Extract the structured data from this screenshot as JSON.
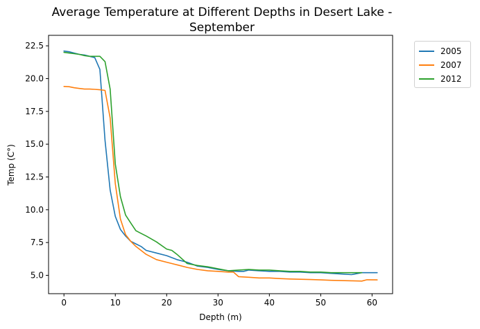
{
  "chart_data": {
    "type": "line",
    "title": "Average Temperature at Different Depths in Desert Lake - September",
    "title_lines": [
      "Average Temperature at Different Depths in Desert Lake -",
      "September"
    ],
    "xlabel": "Depth (m)",
    "ylabel": "Temp (C°)",
    "xlim": [
      -3,
      64
    ],
    "ylim": [
      3.6,
      23.3
    ],
    "xticks": [
      0,
      10,
      20,
      30,
      40,
      50,
      60
    ],
    "yticks": [
      5.0,
      7.5,
      10.0,
      12.5,
      15.0,
      17.5,
      20.0,
      22.5
    ],
    "ytick_labels": [
      "5.0",
      "7.5",
      "10.0",
      "12.5",
      "15.0",
      "17.5",
      "20.0",
      "22.5"
    ],
    "grid": false,
    "legend_position": "upper-right-outside",
    "series": [
      {
        "name": "2005",
        "color": "#1f77b4",
        "x": [
          0,
          1,
          2,
          3,
          4,
          5,
          6,
          7,
          8,
          9,
          10,
          11,
          12,
          13,
          14,
          15,
          16,
          18,
          20,
          22,
          24,
          26,
          28,
          30,
          32,
          34,
          35,
          36,
          38,
          40,
          42,
          44,
          46,
          48,
          50,
          52,
          54,
          56,
          58,
          60,
          61
        ],
        "y": [
          22.1,
          22.05,
          21.95,
          21.85,
          21.8,
          21.7,
          21.6,
          20.7,
          15.3,
          11.5,
          9.5,
          8.5,
          8.0,
          7.6,
          7.4,
          7.2,
          6.9,
          6.7,
          6.5,
          6.2,
          6.0,
          5.7,
          5.6,
          5.45,
          5.35,
          5.3,
          5.3,
          5.4,
          5.35,
          5.3,
          5.3,
          5.25,
          5.25,
          5.2,
          5.2,
          5.15,
          5.1,
          5.05,
          5.2,
          5.2,
          5.2
        ]
      },
      {
        "name": "2007",
        "color": "#ff7f0e",
        "x": [
          0,
          1,
          2,
          3,
          4,
          5,
          6,
          7,
          8,
          9,
          10,
          11,
          12,
          13,
          14,
          15,
          16,
          18,
          20,
          22,
          24,
          26,
          28,
          30,
          32,
          33,
          34,
          36,
          38,
          40,
          42,
          44,
          46,
          48,
          50,
          52,
          54,
          56,
          58,
          59,
          61
        ],
        "y": [
          19.4,
          19.38,
          19.3,
          19.25,
          19.2,
          19.2,
          19.18,
          19.15,
          19.1,
          17.0,
          12.0,
          9.3,
          8.1,
          7.6,
          7.2,
          6.9,
          6.6,
          6.2,
          6.0,
          5.8,
          5.6,
          5.45,
          5.35,
          5.3,
          5.25,
          5.25,
          4.9,
          4.85,
          4.8,
          4.8,
          4.75,
          4.72,
          4.7,
          4.68,
          4.65,
          4.62,
          4.6,
          4.58,
          4.56,
          4.66,
          4.65
        ]
      },
      {
        "name": "2012",
        "color": "#2ca02c",
        "x": [
          0,
          1,
          2,
          3,
          4,
          5,
          6,
          7,
          8,
          9,
          10,
          11,
          12,
          13,
          14,
          15,
          16,
          18,
          20,
          21,
          22,
          24,
          26,
          28,
          30,
          32,
          34,
          36,
          38,
          40,
          42,
          44,
          46,
          48,
          50,
          52,
          54,
          56,
          58
        ],
        "y": [
          22.0,
          21.95,
          21.9,
          21.85,
          21.75,
          21.7,
          21.7,
          21.7,
          21.3,
          19.2,
          13.5,
          11.0,
          9.6,
          9.0,
          8.4,
          8.2,
          8.0,
          7.55,
          7.0,
          6.9,
          6.6,
          5.9,
          5.75,
          5.65,
          5.5,
          5.35,
          5.4,
          5.45,
          5.4,
          5.4,
          5.35,
          5.3,
          5.3,
          5.25,
          5.25,
          5.2,
          5.2,
          5.2,
          5.2
        ]
      }
    ]
  }
}
